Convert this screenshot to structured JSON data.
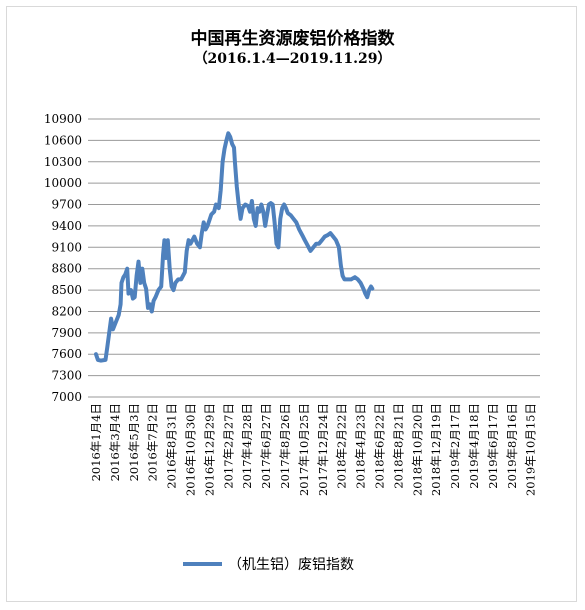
{
  "chart_data": {
    "type": "line",
    "title": "中国再生资源废铝价格指数",
    "subtitle": "（2016.1.4—2019.11.29）",
    "ylim": [
      7000,
      10900
    ],
    "yticks": [
      "10900",
      "10600",
      "10300",
      "10000",
      "9700",
      "9400",
      "9100",
      "8800",
      "8500",
      "8200",
      "7900",
      "7600",
      "7300",
      "7000"
    ],
    "xticks": [
      "2016年1月4日",
      "2016年3月4日",
      "2016年5月3日",
      "2016年7月2日",
      "2016年8月31日",
      "2016年10月30日",
      "2016年12月29日",
      "2017年2月27日",
      "2017年4月28日",
      "2017年6月27日",
      "2017年8月26日",
      "2017年10月25日",
      "2017年12月24日",
      "2018年2月22日",
      "2018年4月23日",
      "2018年6月22日",
      "2018年8月21日",
      "2018年10月20日",
      "2018年12月19日",
      "2019年2月17日",
      "2019年4月18日",
      "2019年6月17日",
      "2019年8月16日",
      "2019年10月15日"
    ],
    "grid": true,
    "color": "#4f81bd",
    "series": [
      {
        "name": "（机生铝）废铝指数",
        "points": [
          [
            0,
            7600
          ],
          [
            0.1,
            7520
          ],
          [
            0.25,
            7510
          ],
          [
            0.5,
            7520
          ],
          [
            0.6,
            7700
          ],
          [
            0.8,
            8100
          ],
          [
            0.9,
            7950
          ],
          [
            1.05,
            8050
          ],
          [
            1.2,
            8150
          ],
          [
            1.3,
            8300
          ],
          [
            1.35,
            8600
          ],
          [
            1.45,
            8680
          ],
          [
            1.55,
            8720
          ],
          [
            1.65,
            8800
          ],
          [
            1.72,
            8450
          ],
          [
            1.85,
            8500
          ],
          [
            1.95,
            8380
          ],
          [
            2.05,
            8400
          ],
          [
            2.15,
            8700
          ],
          [
            2.25,
            8900
          ],
          [
            2.35,
            8600
          ],
          [
            2.45,
            8800
          ],
          [
            2.55,
            8600
          ],
          [
            2.65,
            8520
          ],
          [
            2.75,
            8250
          ],
          [
            2.85,
            8300
          ],
          [
            2.95,
            8200
          ],
          [
            3.05,
            8350
          ],
          [
            3.15,
            8400
          ],
          [
            3.3,
            8500
          ],
          [
            3.45,
            8550
          ],
          [
            3.55,
            9000
          ],
          [
            3.62,
            9200
          ],
          [
            3.7,
            8950
          ],
          [
            3.8,
            9200
          ],
          [
            3.9,
            8800
          ],
          [
            4.0,
            8550
          ],
          [
            4.1,
            8500
          ],
          [
            4.2,
            8600
          ],
          [
            4.35,
            8650
          ],
          [
            4.5,
            8650
          ],
          [
            4.7,
            8750
          ],
          [
            4.8,
            9050
          ],
          [
            4.9,
            9200
          ],
          [
            5.0,
            9150
          ],
          [
            5.1,
            9200
          ],
          [
            5.2,
            9250
          ],
          [
            5.35,
            9150
          ],
          [
            5.5,
            9100
          ],
          [
            5.6,
            9300
          ],
          [
            5.7,
            9450
          ],
          [
            5.8,
            9350
          ],
          [
            5.9,
            9400
          ],
          [
            6.0,
            9480
          ],
          [
            6.1,
            9560
          ],
          [
            6.25,
            9600
          ],
          [
            6.35,
            9700
          ],
          [
            6.5,
            9650
          ],
          [
            6.6,
            9900
          ],
          [
            6.7,
            10300
          ],
          [
            6.8,
            10480
          ],
          [
            6.9,
            10600
          ],
          [
            7.0,
            10700
          ],
          [
            7.1,
            10650
          ],
          [
            7.2,
            10550
          ],
          [
            7.3,
            10500
          ],
          [
            7.35,
            10300
          ],
          [
            7.45,
            9950
          ],
          [
            7.55,
            9700
          ],
          [
            7.65,
            9500
          ],
          [
            7.75,
            9650
          ],
          [
            7.9,
            9700
          ],
          [
            8.05,
            9680
          ],
          [
            8.15,
            9600
          ],
          [
            8.25,
            9750
          ],
          [
            8.35,
            9500
          ],
          [
            8.45,
            9400
          ],
          [
            8.55,
            9650
          ],
          [
            8.65,
            9600
          ],
          [
            8.75,
            9700
          ],
          [
            8.85,
            9600
          ],
          [
            8.95,
            9400
          ],
          [
            9.05,
            9550
          ],
          [
            9.15,
            9700
          ],
          [
            9.25,
            9720
          ],
          [
            9.35,
            9700
          ],
          [
            9.45,
            9450
          ],
          [
            9.55,
            9150
          ],
          [
            9.65,
            9100
          ],
          [
            9.75,
            9500
          ],
          [
            9.85,
            9650
          ],
          [
            9.95,
            9700
          ],
          [
            10.05,
            9650
          ],
          [
            10.15,
            9580
          ],
          [
            10.3,
            9550
          ],
          [
            10.45,
            9500
          ],
          [
            10.6,
            9450
          ],
          [
            10.75,
            9350
          ],
          [
            10.85,
            9300
          ],
          [
            10.95,
            9250
          ],
          [
            11.05,
            9200
          ],
          [
            11.15,
            9150
          ],
          [
            11.25,
            9100
          ],
          [
            11.35,
            9050
          ],
          [
            11.5,
            9100
          ],
          [
            11.65,
            9150
          ],
          [
            11.8,
            9150
          ],
          [
            11.95,
            9200
          ],
          [
            12.1,
            9250
          ],
          [
            12.25,
            9270
          ],
          [
            12.4,
            9300
          ],
          [
            12.55,
            9250
          ],
          [
            12.7,
            9200
          ],
          [
            12.85,
            9100
          ],
          [
            12.95,
            8850
          ],
          [
            13.05,
            8700
          ],
          [
            13.15,
            8650
          ],
          [
            13.3,
            8650
          ],
          [
            13.5,
            8650
          ],
          [
            13.7,
            8680
          ],
          [
            13.85,
            8650
          ],
          [
            14.0,
            8600
          ],
          [
            14.15,
            8520
          ],
          [
            14.25,
            8450
          ],
          [
            14.35,
            8400
          ],
          [
            14.45,
            8500
          ],
          [
            14.55,
            8550
          ],
          [
            14.62,
            8520
          ]
        ]
      }
    ]
  }
}
